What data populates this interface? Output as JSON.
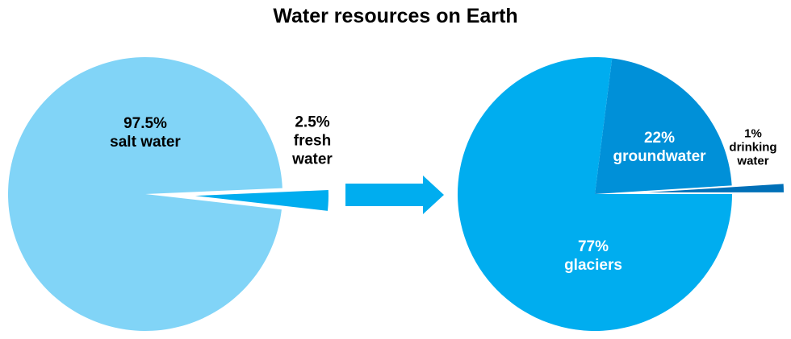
{
  "title": "Water resources on Earth",
  "chart_data": [
    {
      "type": "pie",
      "categories": [
        "salt water",
        "fresh water"
      ],
      "values": [
        97.5,
        2.5
      ],
      "value_labels": [
        "97.5%",
        "2.5%"
      ],
      "colors": [
        "#81d4f7",
        "#00adef"
      ]
    },
    {
      "type": "pie",
      "categories": [
        "groundwater",
        "drinking water",
        "glaciers"
      ],
      "values": [
        22,
        1,
        77
      ],
      "value_labels": [
        "22%",
        "1%",
        "77%"
      ],
      "colors": [
        "#0090d8",
        "#0070b8",
        "#00adef"
      ]
    }
  ]
}
